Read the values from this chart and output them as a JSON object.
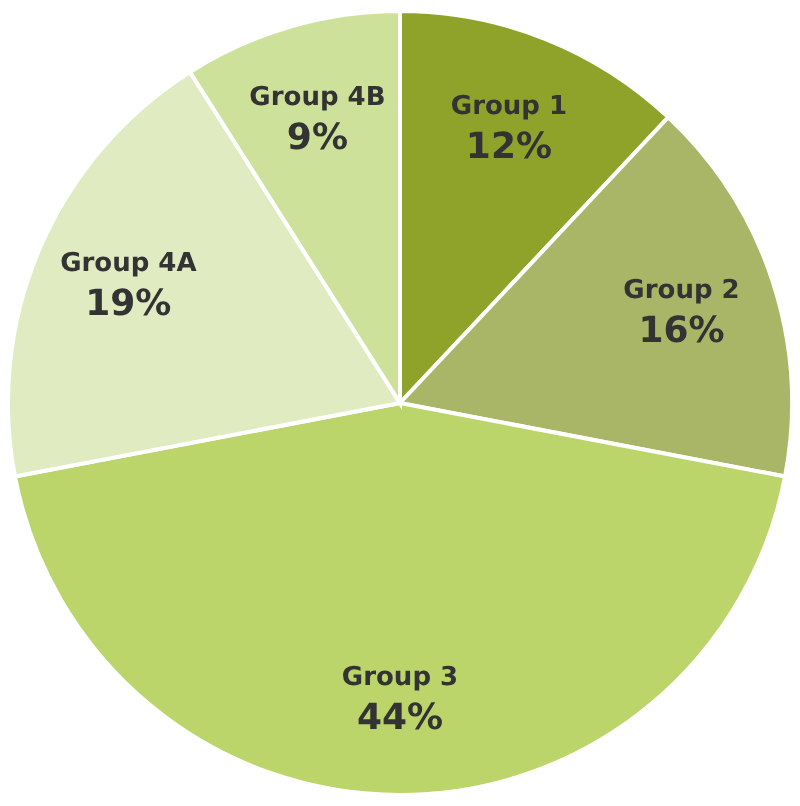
{
  "chart_data": {
    "type": "pie",
    "categories": [
      "Group 1",
      "Group 2",
      "Group 3",
      "Group 4A",
      "Group 4B"
    ],
    "values": [
      12,
      16,
      44,
      19,
      9
    ],
    "value_labels": [
      "12%",
      "16%",
      "44%",
      "19%",
      "9%"
    ],
    "colors": [
      "#8fa32a",
      "#a9b667",
      "#bcd56b",
      "#e1ebc2",
      "#cde19a"
    ]
  }
}
